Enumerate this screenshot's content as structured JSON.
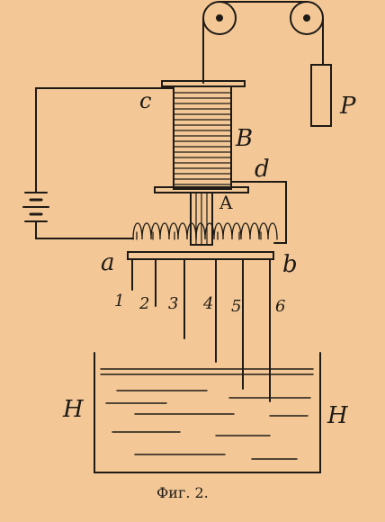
{
  "figure": {
    "caption": "Фиг. 2.",
    "labels": {
      "c": "c",
      "B": "B",
      "d": "d",
      "A": "A",
      "P": "P",
      "a": "a",
      "b": "b",
      "H_left": "H",
      "H_right": "H"
    },
    "rod_numbers": [
      "1",
      "2",
      "3",
      "4",
      "5",
      "6"
    ],
    "colors": {
      "paper": "#f3c896",
      "ink": "#1e1a16"
    }
  }
}
